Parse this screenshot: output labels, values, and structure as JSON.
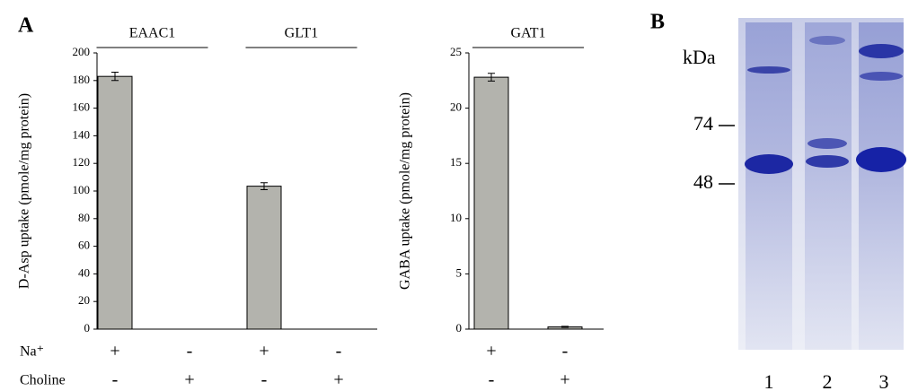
{
  "panel_labels": [
    "A",
    "B"
  ],
  "chart_data": [
    {
      "type": "bar",
      "ylabel": "D-Asp uptake (pmole/mg protein)",
      "groups": [
        "EAAC1",
        "GLT1"
      ],
      "conditions": [
        {
          "name": "Na⁺",
          "values": [
            "+",
            "-",
            "+",
            "-"
          ]
        },
        {
          "name": "Choline",
          "values": [
            "-",
            "+",
            "-",
            "+"
          ]
        }
      ],
      "values": [
        183,
        0,
        103.5,
        0
      ],
      "errors": [
        3,
        0,
        2.5,
        0
      ],
      "color": "#b3b3ad",
      "ylim": [
        0,
        200
      ],
      "yticks": [
        0,
        20,
        40,
        60,
        80,
        100,
        120,
        140,
        160,
        180,
        200
      ]
    },
    {
      "type": "bar",
      "ylabel": "GABA uptake (pmole/mg protein)",
      "groups": [
        "GAT1"
      ],
      "conditions": [
        {
          "values": [
            "+",
            "-"
          ]
        },
        {
          "values": [
            "-",
            "+"
          ]
        }
      ],
      "values": [
        22.8,
        0.2
      ],
      "errors": [
        0.35,
        0.05
      ],
      "color": "#b3b3ad",
      "ylim": [
        0,
        25
      ],
      "yticks": [
        0,
        5,
        10,
        15,
        20,
        25
      ]
    }
  ],
  "gel": {
    "unit": "kDa",
    "markers": [
      74,
      48
    ],
    "lanes": [
      "1",
      "2",
      "3"
    ]
  }
}
